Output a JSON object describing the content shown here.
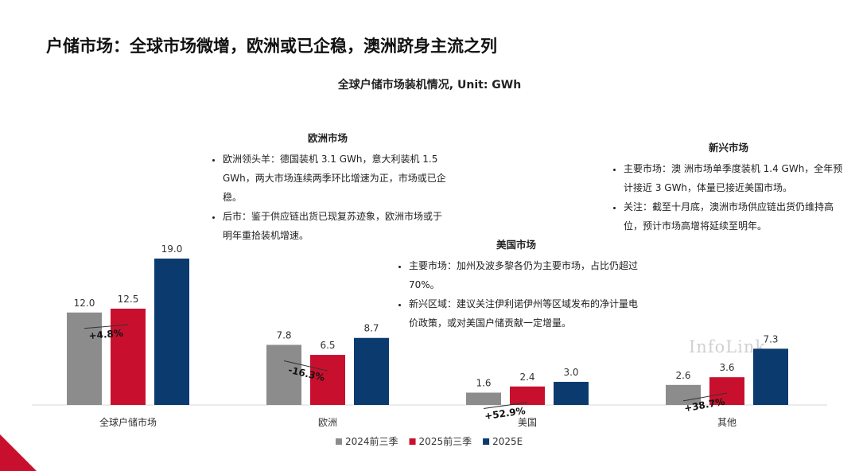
{
  "page": {
    "title": "户储市场：全球市场微增，欧洲或已企稳，澳洲跻身主流之列",
    "watermark": "InfoLink"
  },
  "notes": {
    "europe": {
      "heading": "欧洲市场",
      "items": [
        "欧洲领头羊：德国装机 3.1 GWh，意大利装机 1.5 GWh，两大市场连续两季环比增速为正，市场或已企稳。",
        "后市：鉴于供应链出货已现复苏迹象，欧洲市场或于明年重拾装机增速。"
      ]
    },
    "emerging": {
      "heading": "新兴市场",
      "items": [
        "主要市场：澳 洲市场单季度装机 1.4 GWh，全年预计接近 3 GWh，体量已接近美国市场。",
        "关注：截至十月底，澳洲市场供应链出货仍维持高位，预计市场高增将延续至明年。"
      ]
    },
    "usa": {
      "heading": "美国市场",
      "items": [
        "主要市场：加州及波多黎各仍为主要市场，占比仍超过 70%。",
        "新兴区域：建议关注伊利诺伊州等区域发布的净计量电价政策，或对美国户储贡献一定增量。"
      ]
    }
  },
  "chart_data": {
    "type": "bar",
    "title": "全球户储市场装机情况, Unit: GWh",
    "categories": [
      "全球户储市场",
      "欧洲",
      "美国",
      "其他"
    ],
    "series": [
      {
        "name": "2024前三季",
        "values": [
          12.0,
          7.8,
          1.6,
          2.6
        ],
        "color": "#8c8c8c"
      },
      {
        "name": "2025前三季",
        "values": [
          12.5,
          6.5,
          2.4,
          3.6
        ],
        "color": "#c8102e"
      },
      {
        "name": "2025E",
        "values": [
          19.0,
          8.7,
          3.0,
          7.3
        ],
        "color": "#0b3a6e"
      }
    ],
    "growth_labels": [
      "+4.8%",
      "-16.3%",
      "+52.9%",
      "+38.7%"
    ],
    "ylim": [
      0,
      19
    ],
    "legend_position": "bottom",
    "grid": false
  }
}
